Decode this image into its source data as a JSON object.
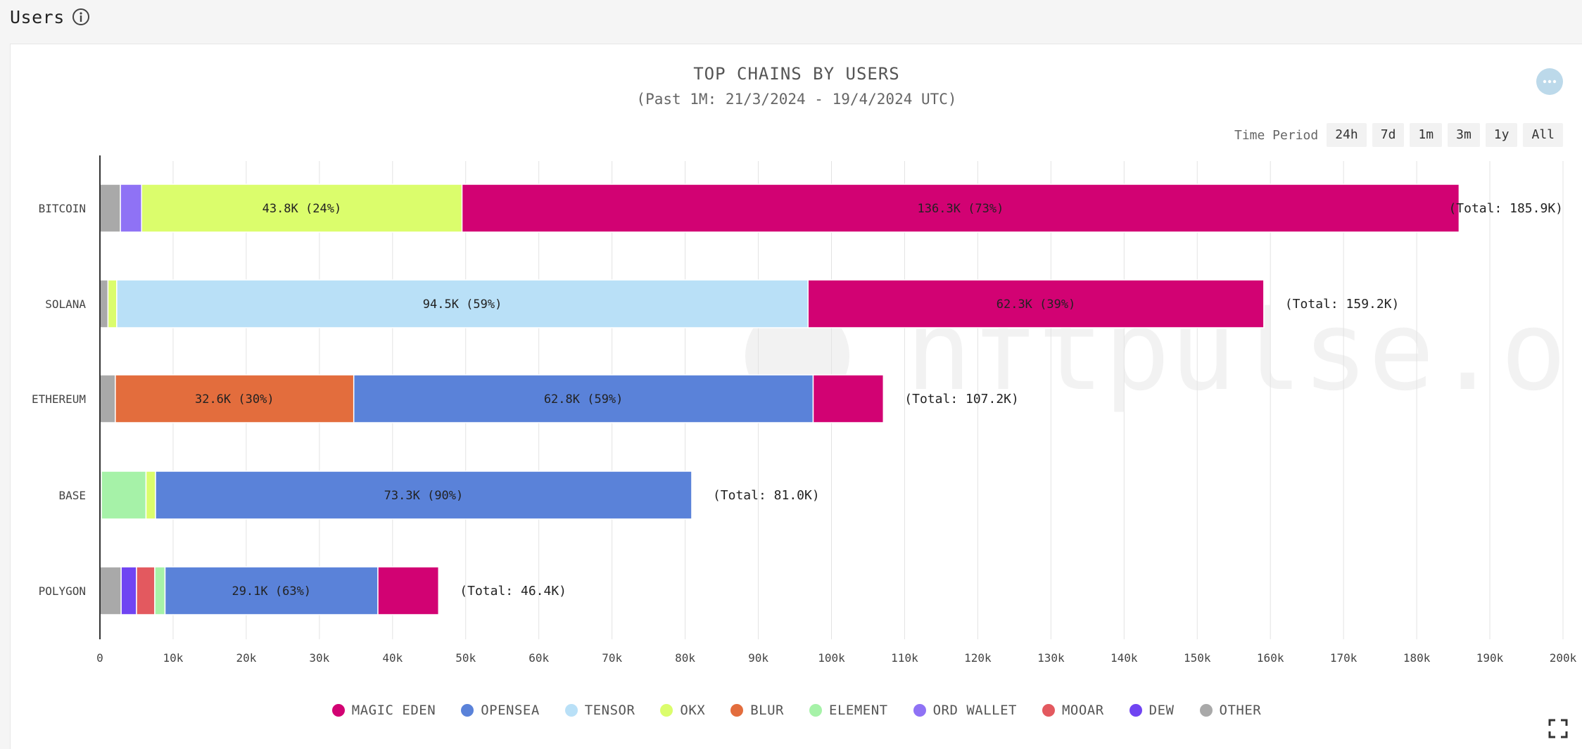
{
  "page": {
    "title": "Users"
  },
  "card": {
    "time_period_label": "Time Period",
    "periods": [
      "24h",
      "7d",
      "1m",
      "3m",
      "1y",
      "All"
    ],
    "watermark": "nftpulse.org"
  },
  "chart_data": {
    "type": "bar",
    "orientation": "horizontal",
    "stacked": true,
    "title": "TOP CHAINS BY USERS",
    "subtitle": "(Past 1M: 21/3/2024 - 19/4/2024 UTC)",
    "xlim": [
      0,
      200000
    ],
    "x_ticks": [
      0,
      10000,
      20000,
      30000,
      40000,
      50000,
      60000,
      70000,
      80000,
      90000,
      100000,
      110000,
      120000,
      130000,
      140000,
      150000,
      160000,
      170000,
      180000,
      190000,
      200000
    ],
    "x_tick_labels": [
      "0",
      "10k",
      "20k",
      "30k",
      "40k",
      "50k",
      "60k",
      "70k",
      "80k",
      "90k",
      "100k",
      "110k",
      "120k",
      "130k",
      "140k",
      "150k",
      "160k",
      "170k",
      "180k",
      "190k",
      "200k"
    ],
    "grid": true,
    "legend_position": "bottom",
    "categories": [
      "BITCOIN",
      "SOLANA",
      "ETHEREUM",
      "BASE",
      "POLYGON"
    ],
    "totals": [
      "(Total: 185.9K)",
      "(Total: 159.2K)",
      "(Total: 107.2K)",
      "(Total: 81.0K)",
      "(Total: 46.4K)"
    ],
    "series": [
      {
        "name": "OTHER",
        "color": "#a9a9a9",
        "values": [
          2800,
          1100,
          2100,
          200,
          2900
        ],
        "labels": [
          "",
          "",
          "",
          "",
          ""
        ]
      },
      {
        "name": "DEW",
        "color": "#7044f2",
        "values": [
          0,
          0,
          0,
          0,
          2100
        ],
        "labels": [
          "",
          "",
          "",
          "",
          ""
        ]
      },
      {
        "name": "MOOAR",
        "color": "#e3595f",
        "values": [
          0,
          0,
          0,
          0,
          2500
        ],
        "labels": [
          "",
          "",
          "",
          "",
          ""
        ]
      },
      {
        "name": "ORD WALLET",
        "color": "#8f72f5",
        "values": [
          2900,
          0,
          0,
          0,
          0
        ],
        "labels": [
          "",
          "",
          "",
          "",
          ""
        ]
      },
      {
        "name": "ELEMENT",
        "color": "#a6f2a8",
        "values": [
          0,
          0,
          0,
          6100,
          1400
        ],
        "labels": [
          "",
          "",
          "",
          "",
          ""
        ]
      },
      {
        "name": "OKX",
        "color": "#dbfd6c",
        "values": [
          43800,
          1200,
          0,
          1300,
          0
        ],
        "labels": [
          "43.8K (24%)",
          "",
          "",
          "",
          ""
        ]
      },
      {
        "name": "BLUR",
        "color": "#e36d3d",
        "values": [
          0,
          0,
          32600,
          0,
          0
        ],
        "labels": [
          "",
          "",
          "32.6K (30%)",
          "",
          ""
        ]
      },
      {
        "name": "TENSOR",
        "color": "#b9e0f7",
        "values": [
          0,
          94500,
          0,
          0,
          0
        ],
        "labels": [
          "",
          "94.5K (59%)",
          "",
          "",
          ""
        ]
      },
      {
        "name": "OPENSEA",
        "color": "#5a82d9",
        "values": [
          0,
          0,
          62800,
          73300,
          29100
        ],
        "labels": [
          "",
          "",
          "62.8K (59%)",
          "73.3K (90%)",
          "29.1K (63%)"
        ]
      },
      {
        "name": "MAGIC EDEN",
        "color": "#d20273",
        "values": [
          136300,
          62300,
          9600,
          0,
          8300
        ],
        "labels": [
          "136.3K (73%)",
          "62.3K (39%)",
          "",
          "",
          ""
        ]
      }
    ],
    "legend": [
      {
        "name": "MAGIC EDEN",
        "color": "#d20273"
      },
      {
        "name": "OPENSEA",
        "color": "#5a82d9"
      },
      {
        "name": "TENSOR",
        "color": "#b9e0f7"
      },
      {
        "name": "OKX",
        "color": "#dbfd6c"
      },
      {
        "name": "BLUR",
        "color": "#e36d3d"
      },
      {
        "name": "ELEMENT",
        "color": "#a6f2a8"
      },
      {
        "name": "ORD WALLET",
        "color": "#8f72f5"
      },
      {
        "name": "MOOAR",
        "color": "#e3595f"
      },
      {
        "name": "DEW",
        "color": "#7044f2"
      },
      {
        "name": "OTHER",
        "color": "#a9a9a9"
      }
    ]
  }
}
